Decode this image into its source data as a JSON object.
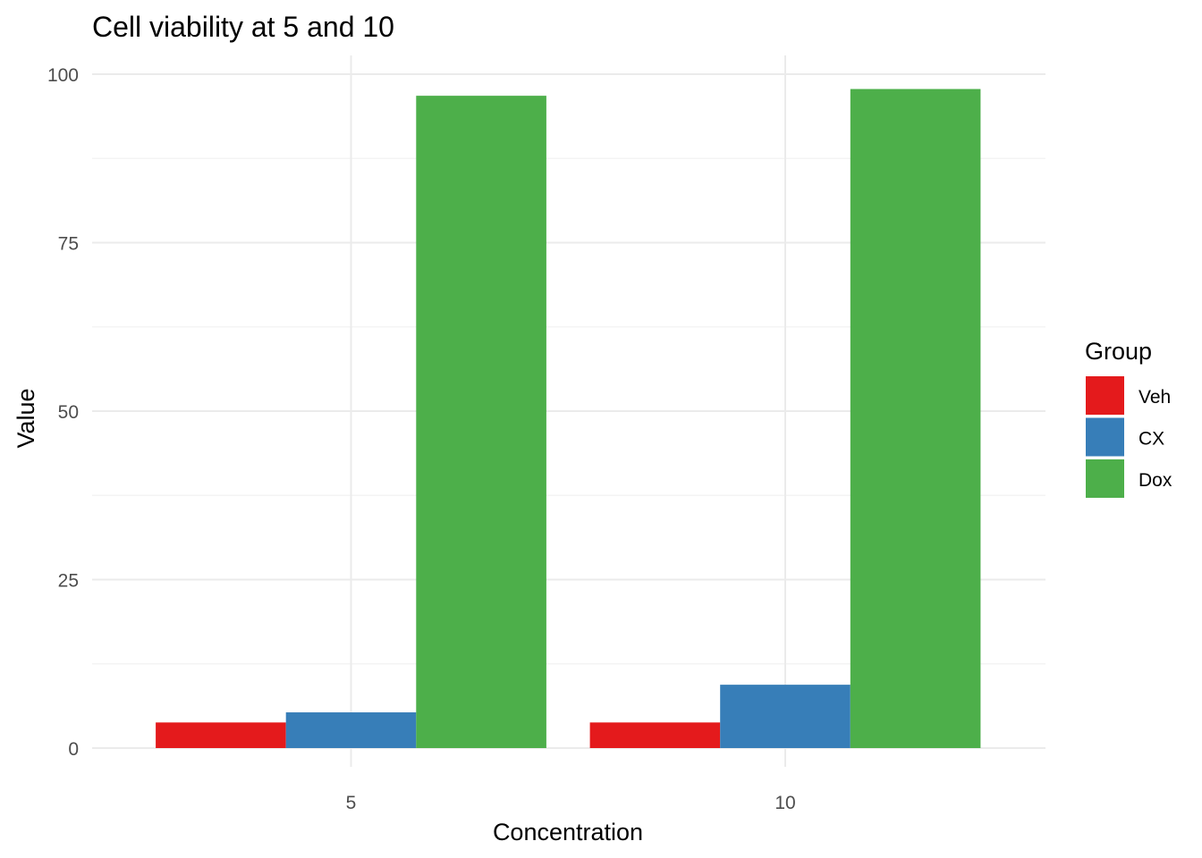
{
  "chart_data": {
    "type": "bar",
    "title": "Cell viability at 5 and 10",
    "xlabel": "Concentration",
    "ylabel": "Value",
    "categories": [
      "5",
      "10"
    ],
    "ylim": [
      0,
      100
    ],
    "yticks": [
      0,
      25,
      50,
      75,
      100
    ],
    "grid": true,
    "legend": {
      "title": "Group",
      "position": "right"
    },
    "series": [
      {
        "name": "Veh",
        "color": "#E41A1C",
        "values": [
          3.8,
          3.8
        ]
      },
      {
        "name": "CX",
        "color": "#377EB8",
        "values": [
          5.3,
          9.4
        ]
      },
      {
        "name": "Dox",
        "color": "#4DAF4A",
        "values": [
          96.8,
          97.8
        ]
      }
    ]
  }
}
